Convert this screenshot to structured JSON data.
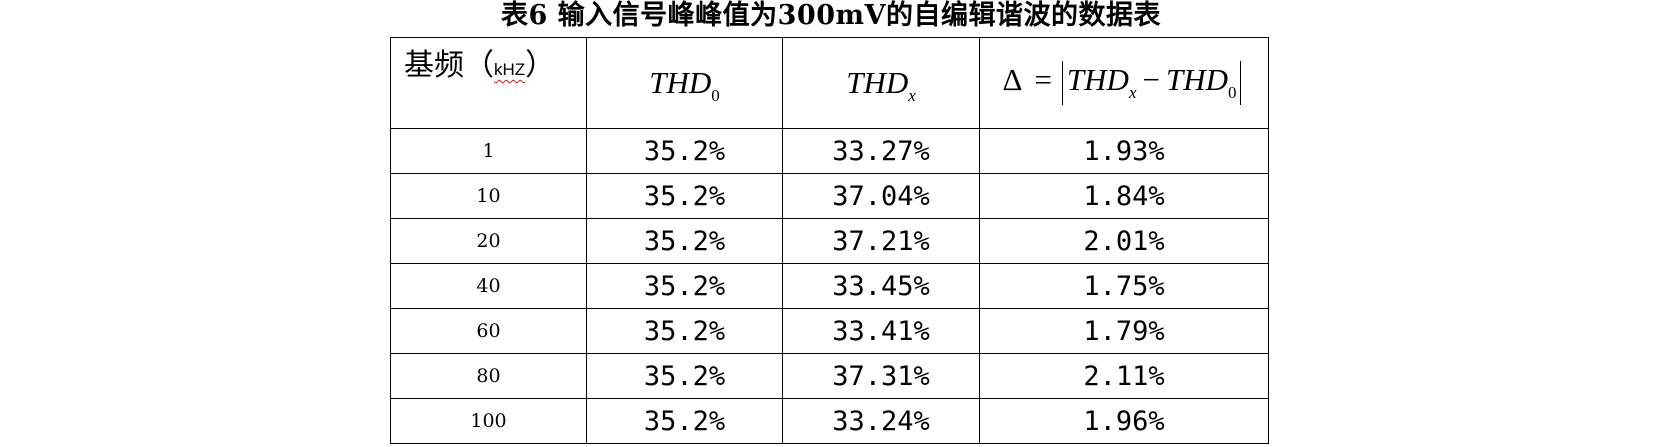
{
  "caption": "表6  输入信号峰峰值为300mV的自编辑谐波的数据表",
  "header": {
    "freq_label": "基频（",
    "freq_unit": "kHZ",
    "freq_close": "）",
    "thd0_base": "THD",
    "thd0_sub": "0",
    "thdx_base": "THD",
    "thdx_sub": "x",
    "delta_symbol": "Δ",
    "equals": "=",
    "delta_thdx_base": "THD",
    "delta_thdx_sub": "x",
    "minus": "−",
    "delta_thd0_base": "THD",
    "delta_thd0_sub": "0"
  },
  "rows": [
    {
      "freq": "1",
      "thd0": "35.2%",
      "thdx": "33.27%",
      "delta": "1.93%"
    },
    {
      "freq": "10",
      "thd0": "35.2%",
      "thdx": "37.04%",
      "delta": "1.84%"
    },
    {
      "freq": "20",
      "thd0": "35.2%",
      "thdx": "37.21%",
      "delta": "2.01%"
    },
    {
      "freq": "40",
      "thd0": "35.2%",
      "thdx": "33.45%",
      "delta": "1.75%"
    },
    {
      "freq": "60",
      "thd0": "35.2%",
      "thdx": "33.41%",
      "delta": "1.79%"
    },
    {
      "freq": "80",
      "thd0": "35.2%",
      "thdx": "37.31%",
      "delta": "2.11%"
    },
    {
      "freq": "100",
      "thd0": "35.2%",
      "thdx": "33.24%",
      "delta": "1.96%"
    }
  ]
}
